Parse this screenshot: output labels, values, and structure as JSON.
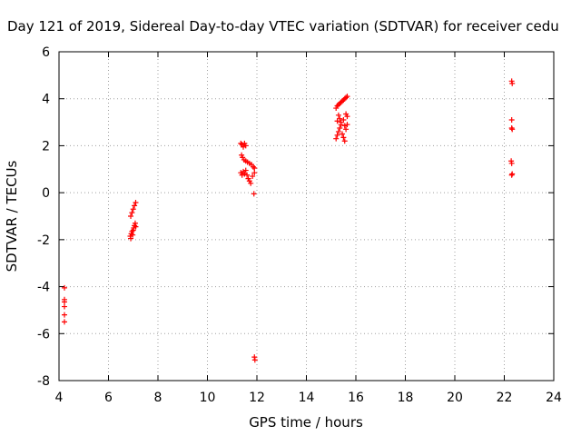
{
  "chart_data": {
    "type": "scatter",
    "title": "Day 121 of 2019, Sidereal Day-to-day VTEC variation (SDTVAR) for receiver cedu",
    "xlabel": "GPS time / hours",
    "ylabel": "SDTVAR / TECUs",
    "xlim": [
      4,
      24
    ],
    "ylim": [
      -8,
      6
    ],
    "x_ticks": [
      4,
      6,
      8,
      10,
      12,
      14,
      16,
      18,
      20,
      22,
      24
    ],
    "y_ticks": [
      -8,
      -6,
      -4,
      -2,
      0,
      2,
      4,
      6
    ],
    "grid": true,
    "legend": "none",
    "marker": "plus",
    "color": "#ff0000",
    "series": [
      {
        "name": "SDTVAR",
        "points": [
          [
            4.22,
            -4.05
          ],
          [
            4.22,
            -4.55
          ],
          [
            4.22,
            -4.65
          ],
          [
            4.22,
            -4.85
          ],
          [
            4.22,
            -5.2
          ],
          [
            4.22,
            -5.5
          ],
          [
            6.9,
            -1.0
          ],
          [
            6.95,
            -0.85
          ],
          [
            7.0,
            -0.7
          ],
          [
            7.05,
            -0.55
          ],
          [
            7.1,
            -0.42
          ],
          [
            6.88,
            -1.85
          ],
          [
            6.9,
            -1.95
          ],
          [
            6.92,
            -1.75
          ],
          [
            6.95,
            -1.65
          ],
          [
            6.98,
            -1.8
          ],
          [
            7.0,
            -1.6
          ],
          [
            7.02,
            -1.5
          ],
          [
            7.05,
            -1.4
          ],
          [
            7.08,
            -1.3
          ],
          [
            7.1,
            -1.45
          ],
          [
            11.35,
            2.1
          ],
          [
            11.4,
            2.05
          ],
          [
            11.45,
            1.95
          ],
          [
            11.5,
            2.1
          ],
          [
            11.55,
            2.0
          ],
          [
            11.38,
            1.6
          ],
          [
            11.42,
            1.5
          ],
          [
            11.48,
            1.4
          ],
          [
            11.55,
            1.35
          ],
          [
            11.62,
            1.3
          ],
          [
            11.7,
            1.25
          ],
          [
            11.78,
            1.2
          ],
          [
            11.85,
            1.1
          ],
          [
            11.9,
            1.05
          ],
          [
            11.35,
            0.85
          ],
          [
            11.4,
            0.75
          ],
          [
            11.45,
            0.9
          ],
          [
            11.5,
            0.8
          ],
          [
            11.55,
            0.95
          ],
          [
            11.6,
            0.75
          ],
          [
            11.65,
            0.6
          ],
          [
            11.7,
            0.5
          ],
          [
            11.75,
            0.4
          ],
          [
            11.82,
            0.7
          ],
          [
            11.9,
            0.85
          ],
          [
            11.88,
            -0.05
          ],
          [
            11.9,
            -7.0
          ],
          [
            11.92,
            -7.12
          ],
          [
            15.2,
            2.3
          ],
          [
            15.25,
            2.45
          ],
          [
            15.3,
            2.6
          ],
          [
            15.35,
            2.75
          ],
          [
            15.4,
            2.9
          ],
          [
            15.45,
            2.5
          ],
          [
            15.5,
            2.35
          ],
          [
            15.55,
            2.2
          ],
          [
            15.6,
            2.7
          ],
          [
            15.25,
            3.05
          ],
          [
            15.2,
            3.6
          ],
          [
            15.25,
            3.7
          ],
          [
            15.3,
            3.75
          ],
          [
            15.35,
            3.8
          ],
          [
            15.4,
            3.85
          ],
          [
            15.45,
            3.9
          ],
          [
            15.5,
            3.95
          ],
          [
            15.55,
            4.0
          ],
          [
            15.6,
            4.05
          ],
          [
            15.65,
            4.1
          ],
          [
            15.3,
            3.3
          ],
          [
            15.35,
            3.15
          ],
          [
            15.4,
            3.0
          ],
          [
            15.5,
            3.1
          ],
          [
            15.6,
            3.35
          ],
          [
            15.65,
            3.25
          ],
          [
            15.55,
            2.85
          ],
          [
            15.65,
            2.9
          ],
          [
            22.3,
            4.75
          ],
          [
            22.32,
            4.65
          ],
          [
            22.3,
            3.1
          ],
          [
            22.3,
            2.75
          ],
          [
            22.32,
            2.7
          ],
          [
            22.28,
            1.35
          ],
          [
            22.3,
            1.25
          ],
          [
            22.3,
            0.75
          ],
          [
            22.32,
            0.8
          ]
        ]
      }
    ]
  }
}
